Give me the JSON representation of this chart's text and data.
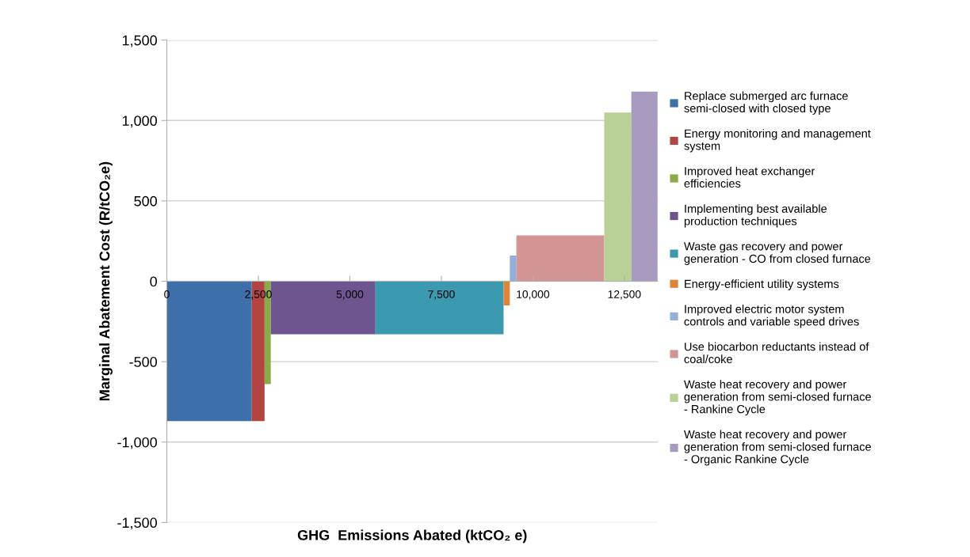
{
  "chart_data": {
    "type": "area",
    "xlabel": "GHG  Emissions Abated (ktCO₂ e)",
    "ylabel": "Marginal Abatement Cost (R/tCO₂e)",
    "series": [
      {
        "name": "Replace submerged arc furnace semi-closed with closed type",
        "color": "#3d6fa8",
        "x": [
          0,
          2320
        ],
        "values": [
          -870,
          -870
        ]
      },
      {
        "name": "Energy monitoring and management system",
        "color": "#b24542",
        "x": [
          2320,
          2670
        ],
        "values": [
          -870,
          -870
        ]
      },
      {
        "name": "Improved heat exchanger efficiencies",
        "color": "#8bab48",
        "x": [
          2670,
          2840
        ],
        "values": [
          -640,
          -640
        ]
      },
      {
        "name": "Implementing best available production techniques",
        "color": "#6e5590",
        "x": [
          2840,
          5700
        ],
        "values": [
          -330,
          -330
        ]
      },
      {
        "name": "Waste gas recovery and power generation - CO from closed furnace",
        "color": "#3b9ab0",
        "x": [
          5700,
          9200
        ],
        "values": [
          -330,
          -330
        ]
      },
      {
        "name": "Energy-efficient utility systems",
        "color": "#e0843a",
        "x": [
          9200,
          9370
        ],
        "values": [
          -150,
          -150
        ]
      },
      {
        "name": "Improved electric motor system controls and variable speed drives",
        "color": "#93aedb",
        "x": [
          9370,
          9550
        ],
        "values": [
          160,
          160
        ]
      },
      {
        "name": "Use biocarbon reductants instead of coal/coke",
        "color": "#d39594",
        "x": [
          9550,
          11950
        ],
        "values": [
          285,
          285
        ]
      },
      {
        "name": "Waste heat recovery and power generation from semi-closed furnace - Rankine Cycle",
        "color": "#b9d196",
        "x": [
          11950,
          12690
        ],
        "values": [
          1050,
          1050
        ]
      },
      {
        "name": "Waste heat recovery and power generation from semi-closed furnace - Organic Rankine Cycle",
        "color": "#a99bc0",
        "x": [
          12690,
          13410
        ],
        "values": [
          1180,
          1180
        ]
      }
    ],
    "xlim": [
      0,
      13410
    ],
    "xticks": [
      0,
      {
        "value": 2500,
        "label": "2,500"
      },
      {
        "value": 5000,
        "label": "5,000"
      },
      {
        "value": 7500,
        "label": "7,500"
      },
      {
        "value": 10000,
        "label": "10,000"
      },
      {
        "value": 12500,
        "label": "12,500"
      }
    ],
    "ylim": [
      -1500,
      1500
    ],
    "yticks": [
      {
        "value": -1500,
        "label": "-1,500"
      },
      {
        "value": -1000,
        "label": "-1,000"
      },
      -500,
      0,
      500,
      {
        "value": 1000,
        "label": "1,000"
      },
      {
        "value": 1500,
        "label": "1,500"
      }
    ],
    "grid": "y",
    "legend": "right"
  }
}
